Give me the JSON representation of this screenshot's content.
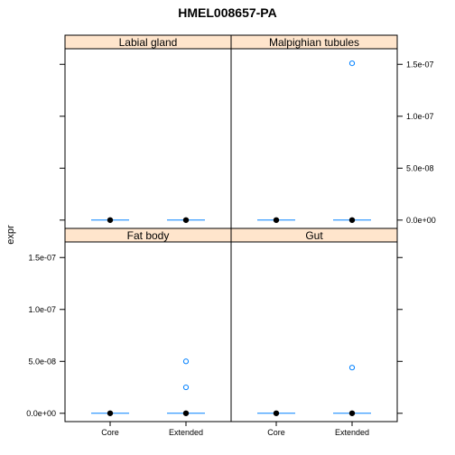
{
  "chart_data": {
    "type": "box",
    "title": "HMEL008657-PA",
    "ylabel": "expr",
    "xlabel": "",
    "categories": [
      "Core",
      "Extended"
    ],
    "ylim": [
      -8e-09,
      1.65e-07
    ],
    "y_ticks": [
      0,
      5e-08,
      1e-07,
      1.5e-07
    ],
    "y_tick_labels": [
      "0.0e+00",
      "5.0e-08",
      "1.0e-07",
      "1.5e-07"
    ],
    "colors": {
      "strip_fill": "#ffe5cc",
      "box": "#0080ff",
      "outlier": "#0080ff",
      "median": "#000000"
    },
    "panels": [
      {
        "name": "Labial gland",
        "series": [
          {
            "category": "Core",
            "median": 0,
            "q1": 0,
            "q3": 0,
            "whisker_low": 0,
            "whisker_high": 0,
            "outliers": []
          },
          {
            "category": "Extended",
            "median": 0,
            "q1": 0,
            "q3": 0,
            "whisker_low": 0,
            "whisker_high": 0,
            "outliers": []
          }
        ]
      },
      {
        "name": "Malpighian tubules",
        "series": [
          {
            "category": "Core",
            "median": 0,
            "q1": 0,
            "q3": 0,
            "whisker_low": 0,
            "whisker_high": 0,
            "outliers": []
          },
          {
            "category": "Extended",
            "median": 0,
            "q1": 0,
            "q3": 0,
            "whisker_low": 0,
            "whisker_high": 0,
            "outliers": [
              1.51e-07
            ]
          }
        ]
      },
      {
        "name": "Fat body",
        "series": [
          {
            "category": "Core",
            "median": 0,
            "q1": 0,
            "q3": 0,
            "whisker_low": 0,
            "whisker_high": 0,
            "outliers": []
          },
          {
            "category": "Extended",
            "median": 0,
            "q1": 0,
            "q3": 0,
            "whisker_low": 0,
            "whisker_high": 0,
            "outliers": [
              5e-08,
              2.5e-08
            ]
          }
        ]
      },
      {
        "name": "Gut",
        "series": [
          {
            "category": "Core",
            "median": 0,
            "q1": 0,
            "q3": 0,
            "whisker_low": 0,
            "whisker_high": 0,
            "outliers": []
          },
          {
            "category": "Extended",
            "median": 0,
            "q1": 0,
            "q3": 0,
            "whisker_low": 0,
            "whisker_high": 0,
            "outliers": [
              4.4e-08
            ]
          }
        ]
      }
    ]
  }
}
